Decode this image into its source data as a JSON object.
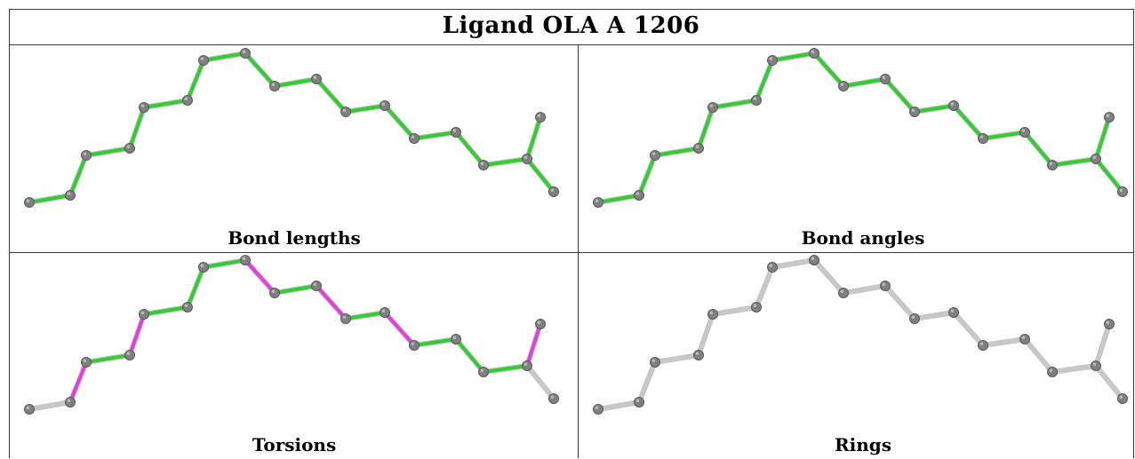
{
  "title": "Ligand OLA A 1206",
  "panels": [
    {
      "caption": "Bond lengths",
      "bond_colors": [
        "green",
        "green",
        "green",
        "green",
        "green",
        "green",
        "green",
        "green",
        "green",
        "green",
        "green",
        "green",
        "green",
        "green",
        "green",
        "green",
        "green",
        "green"
      ]
    },
    {
      "caption": "Bond angles",
      "bond_colors": [
        "green",
        "green",
        "green",
        "green",
        "green",
        "green",
        "green",
        "green",
        "green",
        "green",
        "green",
        "green",
        "green",
        "green",
        "green",
        "green",
        "green",
        "green"
      ]
    },
    {
      "caption": "Torsions",
      "bond_colors": [
        "gray",
        "magenta",
        "green",
        "magenta",
        "green",
        "green",
        "green",
        "magenta",
        "green",
        "magenta",
        "green",
        "magenta",
        "green",
        "green",
        "green",
        "magenta",
        "gray",
        "gray"
      ]
    },
    {
      "caption": "Rings",
      "bond_colors": [
        "gray",
        "gray",
        "gray",
        "gray",
        "gray",
        "gray",
        "gray",
        "gray",
        "gray",
        "gray",
        "gray",
        "gray",
        "gray",
        "gray",
        "gray",
        "gray",
        "gray",
        "gray"
      ]
    }
  ],
  "colors": {
    "green": "#33cc33",
    "magenta": "#e040e0",
    "gray": "#c8c8c8",
    "atom": "#808080"
  }
}
